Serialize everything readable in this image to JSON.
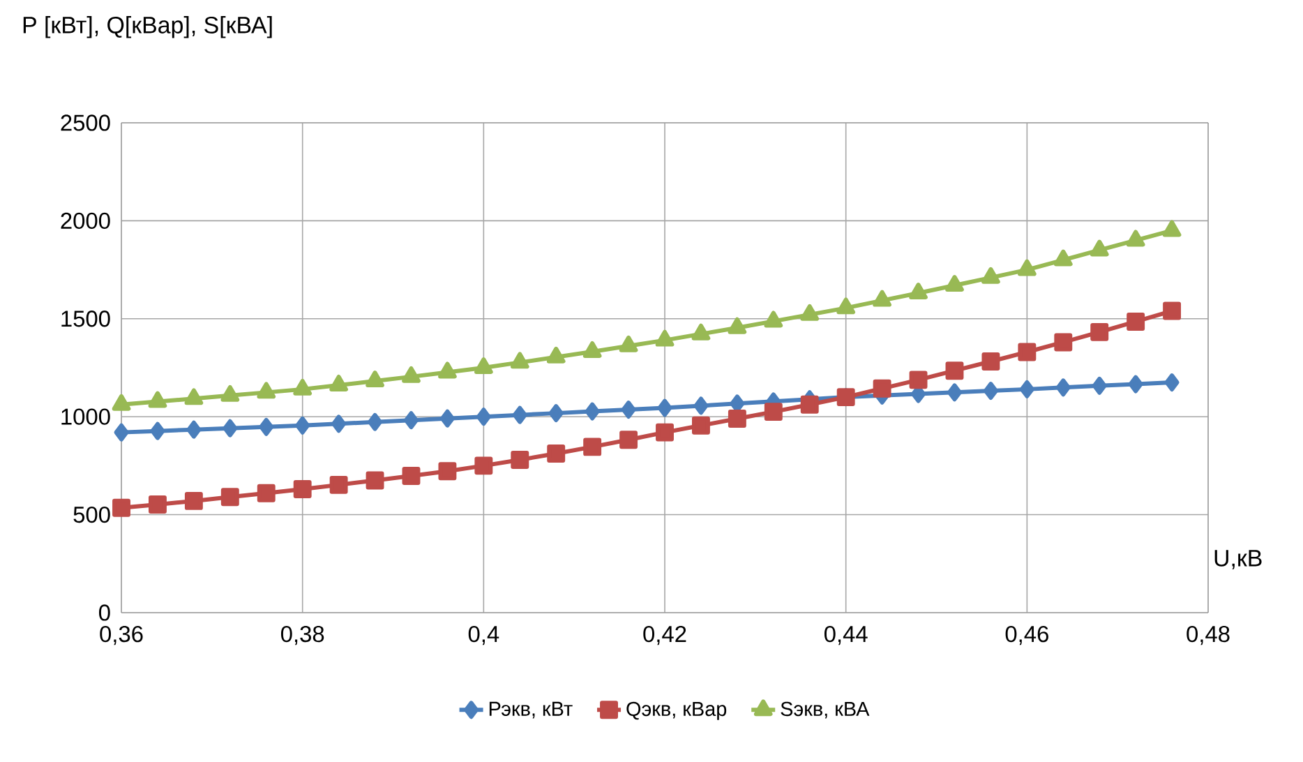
{
  "chart_data": {
    "type": "line",
    "ylabel": "P [кВт], Q[кВар], S[кВА]",
    "xlabel": "U,кВ",
    "x": [
      0.36,
      0.364,
      0.368,
      0.372,
      0.376,
      0.38,
      0.384,
      0.388,
      0.392,
      0.396,
      0.4,
      0.404,
      0.408,
      0.412,
      0.416,
      0.42,
      0.424,
      0.428,
      0.432,
      0.436,
      0.44,
      0.444,
      0.448,
      0.452,
      0.456,
      0.46,
      0.464,
      0.468,
      0.472,
      0.476
    ],
    "series": [
      {
        "name": "Рэкв, кВт",
        "color": "#4a7ebb",
        "marker": "diamond",
        "values": [
          920,
          927,
          934,
          941,
          948,
          955,
          964,
          973,
          982,
          991,
          1000,
          1009,
          1018,
          1027,
          1036,
          1045,
          1056,
          1067,
          1078,
          1089,
          1100,
          1108,
          1116,
          1124,
          1132,
          1140,
          1149,
          1158,
          1166,
          1175
        ]
      },
      {
        "name": "Qэкв, кВар",
        "color": "#be4b48",
        "marker": "square",
        "values": [
          535,
          552,
          570,
          590,
          610,
          630,
          652,
          675,
          698,
          722,
          750,
          780,
          812,
          846,
          882,
          920,
          955,
          990,
          1025,
          1062,
          1100,
          1144,
          1188,
          1235,
          1282,
          1330,
          1380,
          1432,
          1485,
          1540
        ]
      },
      {
        "name": "Sэкв, кВА",
        "color": "#98b954",
        "marker": "triangle",
        "values": [
          1062,
          1077,
          1092,
          1108,
          1124,
          1140,
          1161,
          1182,
          1204,
          1227,
          1250,
          1277,
          1304,
          1332,
          1361,
          1390,
          1422,
          1454,
          1487,
          1521,
          1555,
          1593,
          1631,
          1670,
          1710,
          1750,
          1800,
          1850,
          1900,
          1950
        ]
      }
    ],
    "xlim": [
      0.36,
      0.48
    ],
    "xticks": [
      {
        "value": 0.36,
        "label": "0,36"
      },
      {
        "value": 0.38,
        "label": "0,38"
      },
      {
        "value": 0.4,
        "label": "0,4"
      },
      {
        "value": 0.42,
        "label": "0,42"
      },
      {
        "value": 0.44,
        "label": "0,44"
      },
      {
        "value": 0.46,
        "label": "0,46"
      },
      {
        "value": 0.48,
        "label": "0,48"
      }
    ],
    "ylim": [
      0,
      2500
    ],
    "yticks": [
      0,
      500,
      1000,
      1500,
      2000,
      2500
    ],
    "grid": true,
    "legend": "bottom",
    "line_style": "solid"
  }
}
